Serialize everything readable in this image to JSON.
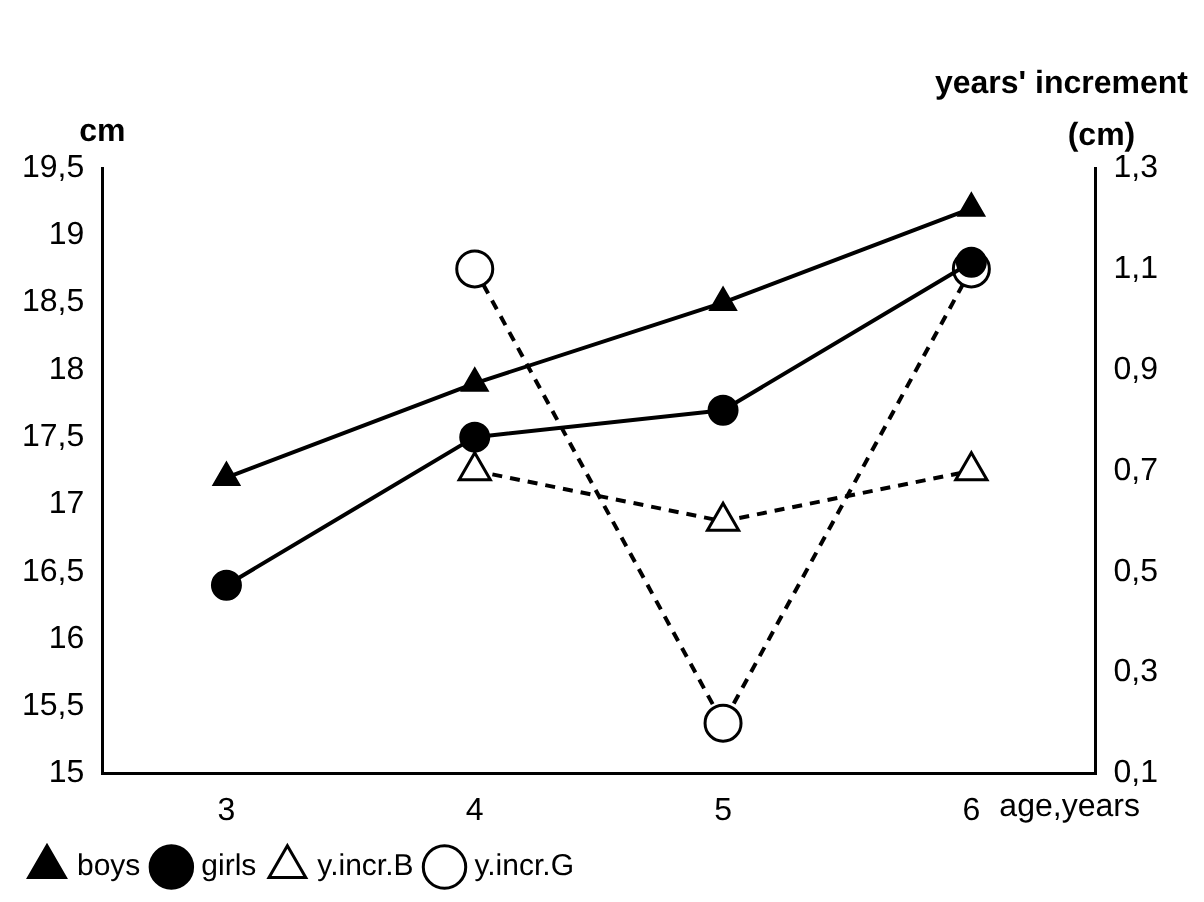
{
  "chart_data": {
    "type": "line",
    "ylabel": "cm",
    "y2label": "years' increment (cm)",
    "xlabel": "age,years",
    "categories": [
      "3",
      "4",
      "5",
      "6"
    ],
    "series": [
      {
        "name": "boys",
        "color": "#000000",
        "values": [
          17.2,
          17.9,
          18.5,
          19.2
        ],
        "marker": "triangle",
        "line_style": "solid"
      },
      {
        "name": "girls",
        "color": "#000000",
        "values": [
          16.4,
          17.5,
          17.7,
          18.8
        ],
        "marker": "circle",
        "line_style": "solid"
      },
      {
        "name": "y.incr.B",
        "color": "#000000",
        "values": [
          null,
          0.7,
          0.6,
          0.7
        ],
        "marker": "triangle",
        "line_style": "dashed",
        "axis": "y2"
      },
      {
        "name": "y.incr.G",
        "color": "#000000",
        "values": [
          null,
          1.1,
          0.2,
          1.1
        ],
        "marker": "circle",
        "line_style": "dashed",
        "axis": "y2"
      }
    ],
    "ylim": [
      15,
      19.5
    ],
    "yticks": [
      15,
      {
        "value": 15.5,
        "label": "15,5"
      },
      16,
      {
        "value": 16.5,
        "label": "16,5"
      },
      17,
      {
        "value": 17.5,
        "label": "17,5"
      },
      18,
      {
        "value": 18.5,
        "label": "18,5"
      },
      19,
      {
        "value": 19.5,
        "label": "19,5"
      }
    ],
    "y2lim": [
      0.1,
      1.3
    ],
    "y2ticks": [
      {
        "value": 0.1,
        "label": "0,1"
      },
      {
        "value": 0.3,
        "label": "0,3"
      },
      {
        "value": 0.5,
        "label": "0,5"
      },
      {
        "value": 0.7,
        "label": "0,7"
      },
      {
        "value": 0.9,
        "label": "0,9"
      },
      {
        "value": 1.1,
        "label": "1,1"
      },
      {
        "value": 1.3,
        "label": "1,3"
      }
    ],
    "grid": false,
    "legend": "bottom left"
  }
}
